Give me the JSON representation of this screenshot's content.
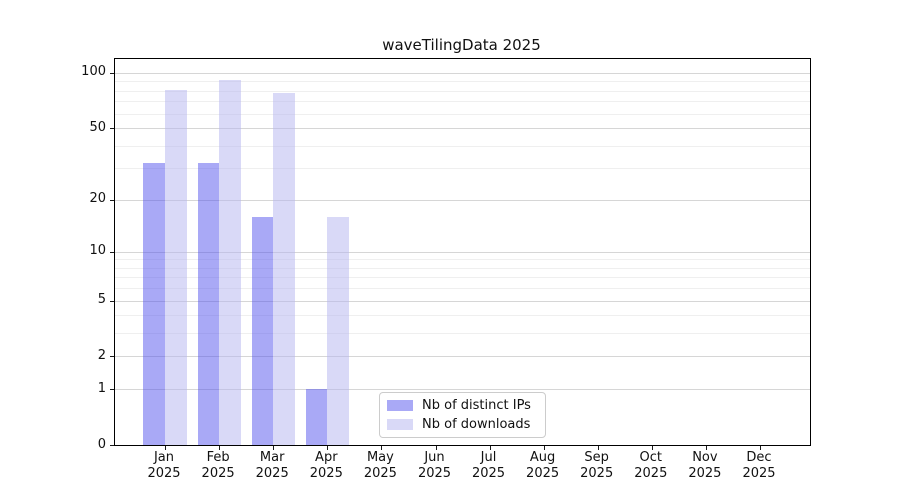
{
  "title": "waveTilingData 2025",
  "chart_data": {
    "type": "bar",
    "title": "waveTilingData 2025",
    "categories": [
      "Jan",
      "Feb",
      "Mar",
      "Apr",
      "May",
      "Jun",
      "Jul",
      "Aug",
      "Sep",
      "Oct",
      "Nov",
      "Dec"
    ],
    "category_year": "2025",
    "series": [
      {
        "key": "distinct-ips",
        "name": "Nb of distinct IPs",
        "color": "rgba(79,79,237,0.49)",
        "color_hex": "#a8a8f3",
        "values": [
          32,
          32,
          16,
          1,
          0,
          0,
          0,
          0,
          0,
          0,
          0,
          0
        ]
      },
      {
        "key": "downloads",
        "name": "Nb of downloads",
        "color": "rgba(179,179,239,0.5)",
        "color_hex": "#d9d9f7",
        "values": [
          81,
          92,
          78,
          16,
          0,
          0,
          0,
          0,
          0,
          0,
          0,
          0
        ]
      }
    ],
    "yscale": "log1p",
    "ylim": [
      0,
      119
    ],
    "y_major_ticks": [
      100,
      50,
      20,
      10,
      5,
      2,
      1,
      0
    ],
    "y_minor_gridlines": [
      90,
      80,
      70,
      60,
      40,
      30,
      9,
      8,
      7,
      6,
      4,
      3
    ],
    "grid": "horizontal majors and minors",
    "legend_position": "inside lower center"
  },
  "legend": {
    "items": [
      {
        "label": "Nb of distinct IPs",
        "swatch": "#a8a8f3"
      },
      {
        "label": "Nb of downloads",
        "swatch": "#d9d9f7"
      }
    ]
  },
  "colors": {
    "bar_ips": "#a8a8f3",
    "bar_downloads": "#d9d9f7",
    "grid_major": "#d6d6d6",
    "grid_minor": "#efefef",
    "spine": "#000000",
    "text": "#111111",
    "legend_border": "#cccccc"
  }
}
